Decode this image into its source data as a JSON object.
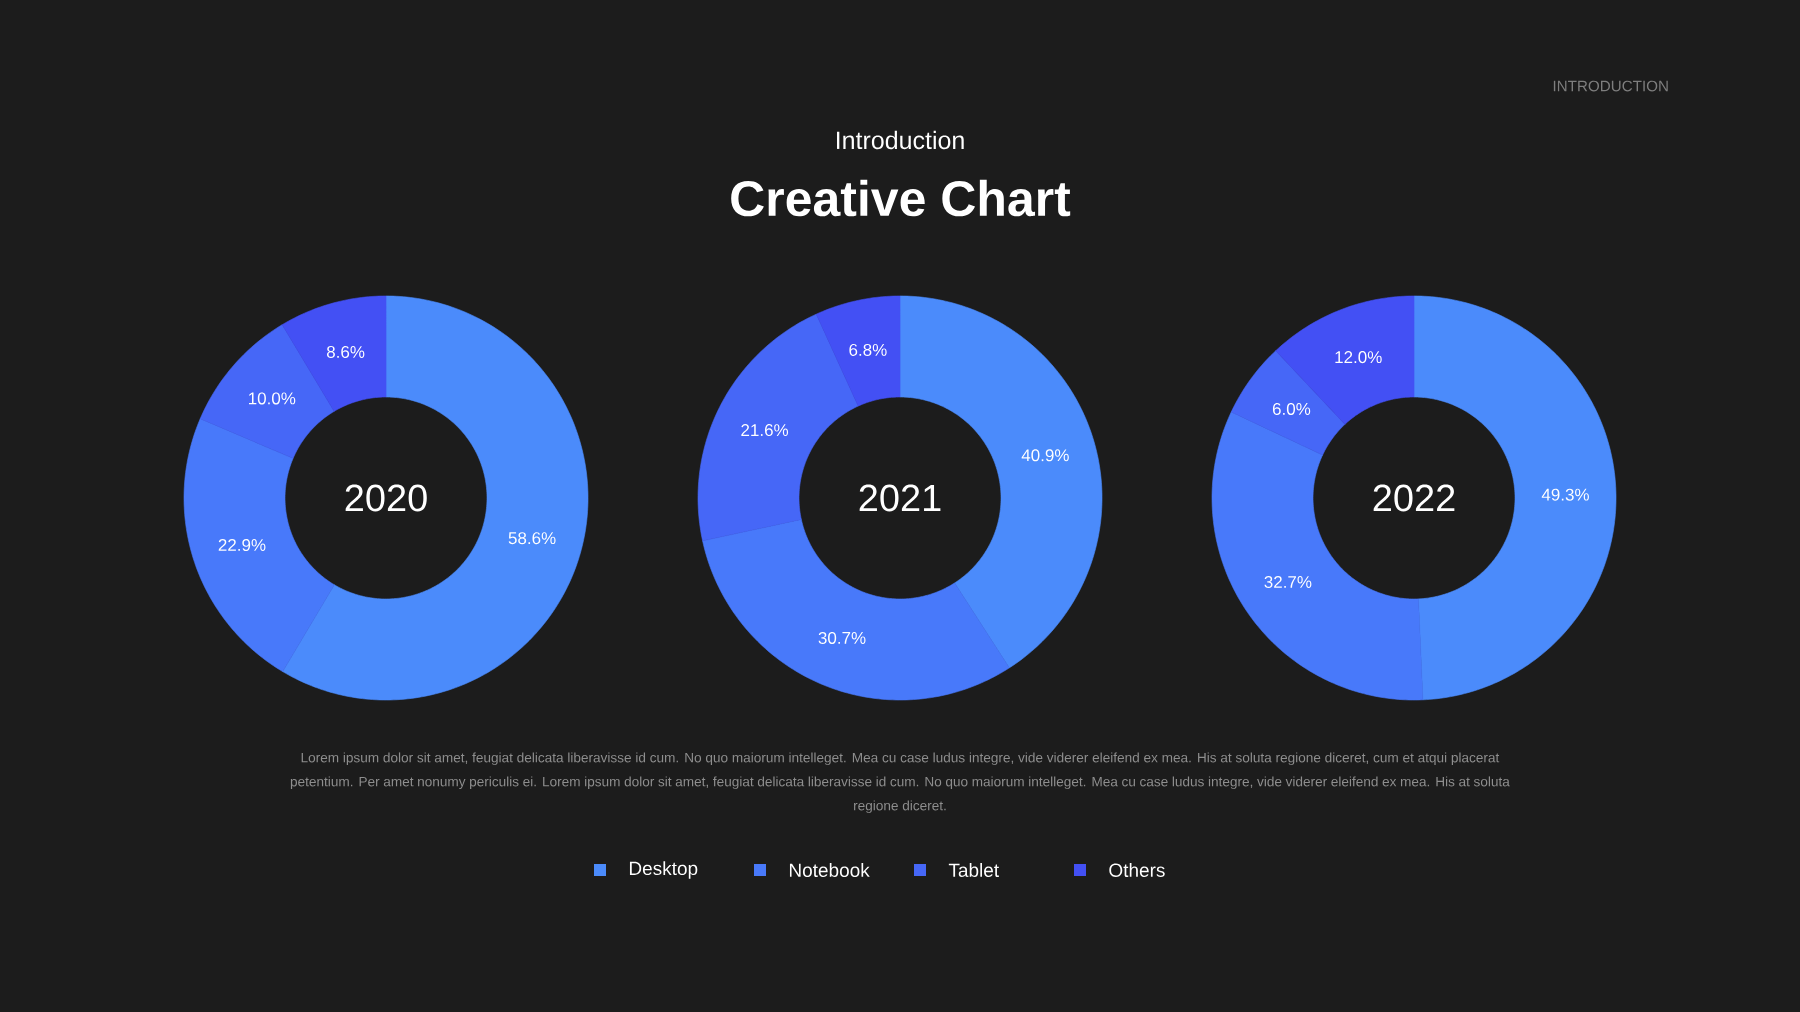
{
  "chart_data": {
    "type": "donut",
    "subtitle": "Introduction",
    "title": "Creative Chart",
    "categories": [
      "Desktop",
      "Notebook",
      "Tablet",
      "Others"
    ],
    "colors": [
      "#4b8bfb",
      "#4879fa",
      "#4667f7",
      "#4350f4"
    ],
    "series": [
      {
        "name": "2020",
        "values": [
          58.6,
          22.9,
          10.0,
          8.6
        ],
        "value_labels": [
          "58.6%",
          "22.9%",
          "10.0%",
          "8.6%"
        ]
      },
      {
        "name": "2021",
        "values": [
          40.9,
          30.7,
          21.6,
          6.8
        ],
        "value_labels": [
          "40.9%",
          "30.7%",
          "21.6%",
          "6.8%"
        ]
      },
      {
        "name": "2022",
        "values": [
          49.3,
          32.7,
          6.0,
          12.0
        ],
        "value_labels": [
          "49.3%",
          "32.7%",
          "6.0%",
          "12.0%"
        ]
      }
    ],
    "legend": "bottom",
    "annotations": [
      "INTRODUCTION",
      "Lorem ipsum dolor sit amet, feugiat delicata liberavisse id cum. No quo maiorum intelleget. Mea cu case ludus integre, vide viderer eleifend ex mea. His at soluta regione diceret, cum et atqui placerat petentium. Per amet nonumy periculis ei. Lorem ipsum dolor sit amet, feugiat delicata liberavisse id cum. No quo maiorum intelleget. Mea cu case ludus integre, vide viderer eleifend ex mea. His at soluta regione diceret."
    ]
  }
}
